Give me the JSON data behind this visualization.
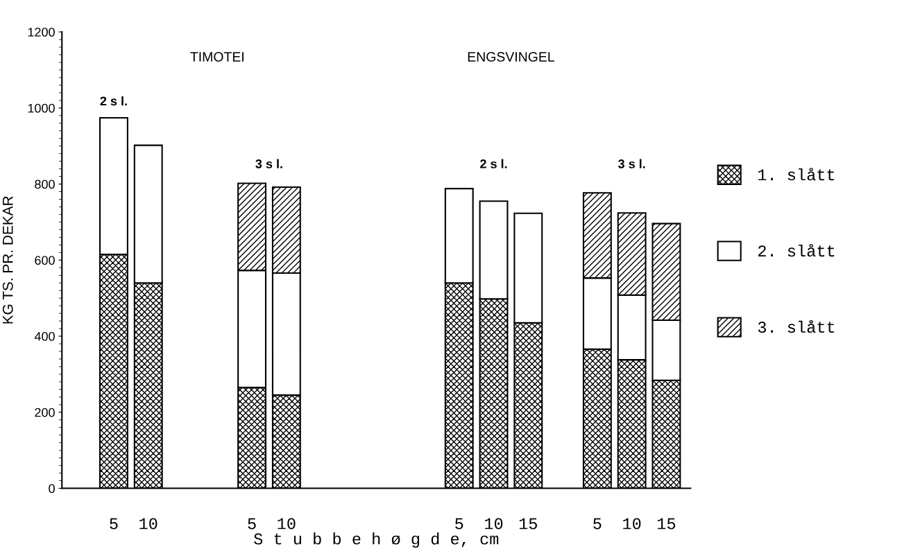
{
  "chart_data": {
    "type": "bar",
    "stacked": true,
    "ylabel": "KG TS. PR. DEKAR",
    "xlabel": "S t u b b e h ø g d e, cm",
    "categories": [
      "5",
      "10",
      null,
      null,
      "5",
      "10",
      null,
      null,
      null,
      null,
      "5",
      "10",
      "15",
      null,
      "5",
      "10",
      "15"
    ],
    "series": [
      {
        "name": "1. slått",
        "color": "#000000",
        "values": [
          615,
          540,
          null,
          null,
          265,
          245,
          null,
          null,
          null,
          null,
          540,
          498,
          435,
          null,
          366,
          338,
          284
        ]
      },
      {
        "name": "2. slått",
        "color": "#ffffff",
        "values": [
          359,
          362,
          null,
          null,
          308,
          321,
          null,
          null,
          null,
          null,
          248,
          257,
          288,
          null,
          187,
          170,
          158
        ]
      },
      {
        "name": "3. slått",
        "color": "#000000",
        "values": [
          0,
          0,
          null,
          null,
          229,
          226,
          null,
          null,
          null,
          null,
          0,
          0,
          0,
          null,
          224,
          216,
          254
        ]
      }
    ],
    "ylim": [
      0,
      1200
    ],
    "yticks": [
      0,
      200,
      400,
      600,
      800,
      1000,
      1200
    ],
    "annotations": [
      "TIMOTEI",
      "2 s l.",
      "3 s l.",
      "ENGSVINGEL",
      "2 s l.",
      "3 s l."
    ],
    "legend": "right"
  }
}
